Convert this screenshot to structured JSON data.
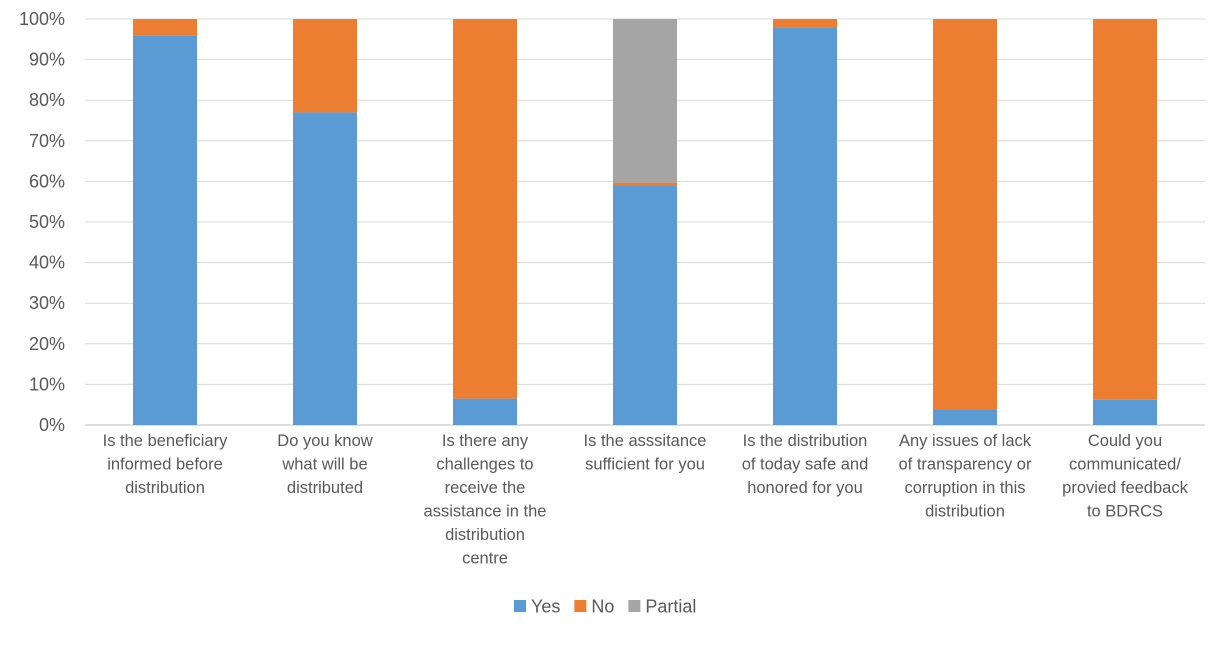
{
  "chart_data": {
    "type": "bar",
    "stacked": true,
    "normalized": true,
    "categories": [
      [
        "Is the beneficiary",
        "informed before",
        "distribution"
      ],
      [
        "Do you know",
        "what will be",
        "distributed"
      ],
      [
        "Is there any",
        "challenges to",
        "receive the",
        "assistance in the",
        "distribution",
        "centre"
      ],
      [
        "Is the asssitance",
        "sufficient for you"
      ],
      [
        "Is the distribution",
        "of today safe and",
        "honored for you"
      ],
      [
        "Any issues of lack",
        "of transparency or",
        "corruption in this",
        "distribution"
      ],
      [
        "Could you",
        "communicated/",
        "provied feedback",
        "to BDRCS"
      ]
    ],
    "series": [
      {
        "name": "Yes",
        "color": "#5b9bd5",
        "values": [
          96,
          77,
          6.5,
          59,
          98,
          3.7,
          6.2
        ]
      },
      {
        "name": "No",
        "color": "#ed7d31",
        "values": [
          4,
          23,
          93.5,
          0.7,
          2,
          96.3,
          93.8
        ]
      },
      {
        "name": "Partial",
        "color": "#a5a5a5",
        "values": [
          0,
          0,
          0,
          40.3,
          0,
          0,
          0
        ]
      }
    ],
    "y_ticks": [
      "0%",
      "10%",
      "20%",
      "30%",
      "40%",
      "50%",
      "60%",
      "70%",
      "80%",
      "90%",
      "100%"
    ],
    "ylim": [
      0,
      100
    ],
    "grid": true,
    "legend": "bottom"
  }
}
